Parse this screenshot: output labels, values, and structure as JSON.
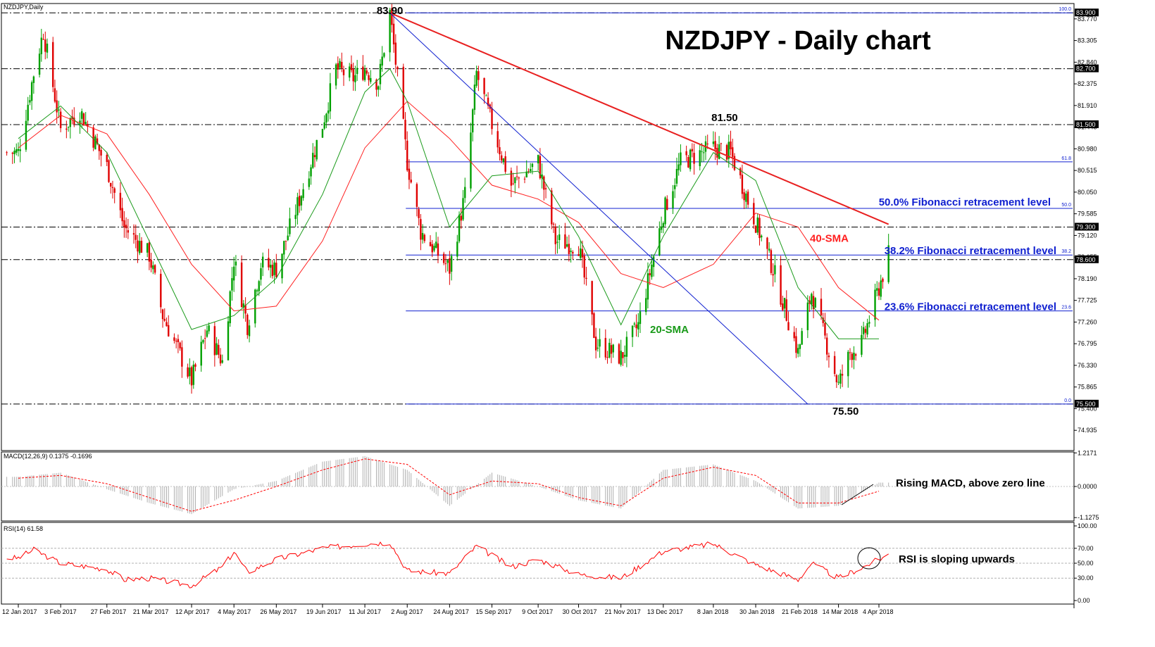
{
  "symbol_label": "NZDJPY,Daily",
  "title": "NZDJPY - Daily chart",
  "colors": {
    "bull_candle": "#00a000",
    "bear_candle": "#e00000",
    "sma20": "#1a9a1a",
    "sma40": "#ff2020",
    "fib": "#1020d0",
    "trendline": "#e82020",
    "level": "#000000",
    "macd_signal": "#ff0000",
    "macd_hist": "#b0b0b0",
    "rsi": "#ff0000"
  },
  "chart_data": [
    {
      "type": "candlestick",
      "title": "NZDJPY - Daily chart",
      "price_range": [
        74.5,
        84.1
      ],
      "price_ticks": [
        "83.770",
        "83.305",
        "82.840",
        "82.375",
        "81.910",
        "81.445",
        "80.980",
        "80.515",
        "80.050",
        "79.585",
        "79.120",
        "78.655",
        "78.190",
        "77.725",
        "77.260",
        "76.795",
        "76.330",
        "75.865",
        "75.400",
        "74.935"
      ],
      "date_ticks": [
        "12 Jan 2017",
        "3 Feb 2017",
        "27 Feb 2017",
        "21 Mar 2017",
        "12 Apr 2017",
        "4 May 2017",
        "26 May 2017",
        "19 Jun 2017",
        "11 Jul 2017",
        "2 Aug 2017",
        "24 Aug 2017",
        "15 Sep 2017",
        "9 Oct 2017",
        "30 Oct 2017",
        "21 Nov 2017",
        "13 Dec 2017",
        "8 Jan 2018",
        "30 Jan 2018",
        "21 Feb 2018",
        "14 Mar 2018",
        "4 Apr 2018"
      ],
      "close_path": [
        [
          "12 Jan 2017",
          80.9
        ],
        [
          "20 Jan 2017",
          82.6
        ],
        [
          "25 Jan 2017",
          83.5
        ],
        [
          "3 Feb 2017",
          81.4
        ],
        [
          "13 Feb 2017",
          81.8
        ],
        [
          "27 Feb 2017",
          80.6
        ],
        [
          "8 Mar 2017",
          79.3
        ],
        [
          "21 Mar 2017",
          78.7
        ],
        [
          "28 Mar 2017",
          77.4
        ],
        [
          "12 Apr 2017",
          76.0
        ],
        [
          "20 Apr 2017",
          77.1
        ],
        [
          "28 Apr 2017",
          76.4
        ],
        [
          "4 May 2017",
          78.6
        ],
        [
          "11 May 2017",
          77.2
        ],
        [
          "18 May 2017",
          78.5
        ],
        [
          "26 May 2017",
          78.4
        ],
        [
          "7 Jun 2017",
          79.9
        ],
        [
          "19 Jun 2017",
          81.5
        ],
        [
          "26 Jun 2017",
          82.7
        ],
        [
          "5 Jul 2017",
          82.5
        ],
        [
          "11 Jul 2017",
          82.7
        ],
        [
          "18 Jul 2017",
          82.4
        ],
        [
          "24 Jul 2017",
          83.9
        ],
        [
          "2 Aug 2017",
          80.7
        ],
        [
          "9 Aug 2017",
          79.2
        ],
        [
          "24 Aug 2017",
          78.4
        ],
        [
          "1 Sep 2017",
          80.0
        ],
        [
          "7 Sep 2017",
          82.6
        ],
        [
          "15 Sep 2017",
          81.5
        ],
        [
          "25 Sep 2017",
          80.2
        ],
        [
          "9 Oct 2017",
          80.7
        ],
        [
          "18 Oct 2017",
          79.0
        ],
        [
          "30 Oct 2017",
          78.9
        ],
        [
          "8 Nov 2017",
          76.8
        ],
        [
          "21 Nov 2017",
          76.5
        ],
        [
          "30 Nov 2017",
          77.2
        ],
        [
          "13 Dec 2017",
          79.6
        ],
        [
          "22 Dec 2017",
          80.7
        ],
        [
          "8 Jan 2018",
          81.0
        ],
        [
          "17 Jan 2018",
          80.9
        ],
        [
          "30 Jan 2018",
          79.4
        ],
        [
          "8 Feb 2018",
          78.4
        ],
        [
          "21 Feb 2018",
          76.6
        ],
        [
          "28 Feb 2018",
          77.9
        ],
        [
          "7 Mar 2018",
          76.9
        ],
        [
          "14 Mar 2018",
          75.9
        ],
        [
          "20 Mar 2018",
          76.6
        ],
        [
          "26 Mar 2018",
          76.8
        ],
        [
          "4 Apr 2018",
          78.0
        ],
        [
          "9 Apr 2018",
          78.7
        ]
      ],
      "sma20_path": [
        [
          "12 Jan 2017",
          81.2
        ],
        [
          "3 Feb 2017",
          81.9
        ],
        [
          "27 Feb 2017",
          80.9
        ],
        [
          "21 Mar 2017",
          79.0
        ],
        [
          "12 Apr 2017",
          77.1
        ],
        [
          "4 May 2017",
          77.4
        ],
        [
          "26 May 2017",
          78.2
        ],
        [
          "19 Jun 2017",
          80.0
        ],
        [
          "11 Jul 2017",
          82.2
        ],
        [
          "24 Jul 2017",
          82.7
        ],
        [
          "2 Aug 2017",
          82.0
        ],
        [
          "24 Aug 2017",
          79.3
        ],
        [
          "15 Sep 2017",
          80.4
        ],
        [
          "9 Oct 2017",
          80.5
        ],
        [
          "30 Oct 2017",
          79.1
        ],
        [
          "21 Nov 2017",
          77.2
        ],
        [
          "13 Dec 2017",
          79.1
        ],
        [
          "8 Jan 2018",
          80.9
        ],
        [
          "30 Jan 2018",
          80.3
        ],
        [
          "21 Feb 2018",
          78.0
        ],
        [
          "14 Mar 2018",
          76.9
        ],
        [
          "4 Apr 2018",
          76.9
        ]
      ],
      "sma40_path": [
        [
          "12 Jan 2017",
          81.0
        ],
        [
          "3 Feb 2017",
          81.7
        ],
        [
          "27 Feb 2017",
          81.3
        ],
        [
          "21 Mar 2017",
          80.0
        ],
        [
          "12 Apr 2017",
          78.5
        ],
        [
          "4 May 2017",
          77.5
        ],
        [
          "26 May 2017",
          77.6
        ],
        [
          "19 Jun 2017",
          79.0
        ],
        [
          "11 Jul 2017",
          81.0
        ],
        [
          "2 Aug 2017",
          82.0
        ],
        [
          "24 Aug 2017",
          81.2
        ],
        [
          "15 Sep 2017",
          80.2
        ],
        [
          "9 Oct 2017",
          79.9
        ],
        [
          "30 Oct 2017",
          79.4
        ],
        [
          "21 Nov 2017",
          78.3
        ],
        [
          "13 Dec 2017",
          78.0
        ],
        [
          "8 Jan 2018",
          78.5
        ],
        [
          "30 Jan 2018",
          79.6
        ],
        [
          "21 Feb 2018",
          79.3
        ],
        [
          "14 Mar 2018",
          78.0
        ],
        [
          "4 Apr 2018",
          77.3
        ]
      ],
      "horizontal_levels": [
        {
          "price": 83.9,
          "label": "83.900",
          "style": "dash-dot"
        },
        {
          "price": 82.7,
          "label": "82.700",
          "style": "dash-dot"
        },
        {
          "price": 81.5,
          "label": "81.500",
          "style": "dash-dot"
        },
        {
          "price": 79.3,
          "label": "79.300",
          "style": "dash-dot"
        },
        {
          "price": 78.6,
          "label": "78.600",
          "style": "dash-dot"
        },
        {
          "price": 75.5,
          "label": "75.500",
          "style": "dash-dot"
        }
      ],
      "fibonacci": {
        "from_date": "2 Aug 2017",
        "levels": [
          {
            "ratio": "100.0",
            "price": 83.9
          },
          {
            "ratio": "61.8",
            "price": 80.7
          },
          {
            "ratio": "50.0",
            "price": 79.7
          },
          {
            "ratio": "38.2",
            "price": 78.7
          },
          {
            "ratio": "23.6",
            "price": 77.5
          },
          {
            "ratio": "0.0",
            "price": 75.5
          }
        ]
      },
      "trendlines": [
        {
          "name": "red",
          "from": [
            "24 Jul 2017",
            83.9
          ],
          "to": [
            "9 Apr 2018",
            79.36
          ]
        },
        {
          "name": "blue",
          "from": [
            "24 Jul 2017",
            83.9
          ],
          "to": [
            "26 Feb 2018",
            75.5
          ]
        }
      ],
      "annotations": [
        {
          "text": "83.90",
          "date": "24 Jul 2017",
          "price": 83.9
        },
        {
          "text": "81.50",
          "date": "8 Jan 2018",
          "price": 81.5
        },
        {
          "text": "75.50",
          "date": "14 Mar 2018",
          "price": 75.5
        },
        {
          "text": "50.0% Fibonacci retracement level",
          "price": 79.7
        },
        {
          "text": "40-SMA",
          "price": 79.1
        },
        {
          "text": "38.2% Fibonacci retracement level",
          "price": 78.7
        },
        {
          "text": "23.6% Fibonacci retracement level",
          "price": 77.5
        },
        {
          "text": "20-SMA",
          "price": 77.1
        }
      ]
    },
    {
      "type": "bar",
      "name": "MACD",
      "header": "MACD(12,26,9) 0.1375 -0.1696",
      "ticks": [
        "1.2171",
        "0.0000",
        "-1.1275"
      ],
      "range": [
        -1.25,
        1.25
      ],
      "hist_path": [
        [
          "12 Jan 2017",
          0.35
        ],
        [
          "3 Feb 2017",
          0.5
        ],
        [
          "27 Feb 2017",
          -0.1
        ],
        [
          "21 Mar 2017",
          -0.6
        ],
        [
          "12 Apr 2017",
          -1.0
        ],
        [
          "4 May 2017",
          -0.1
        ],
        [
          "26 May 2017",
          0.2
        ],
        [
          "19 Jun 2017",
          0.9
        ],
        [
          "11 Jul 2017",
          1.1
        ],
        [
          "2 Aug 2017",
          0.6
        ],
        [
          "24 Aug 2017",
          -0.7
        ],
        [
          "15 Sep 2017",
          0.5
        ],
        [
          "9 Oct 2017",
          0.0
        ],
        [
          "30 Oct 2017",
          -0.5
        ],
        [
          "21 Nov 2017",
          -0.8
        ],
        [
          "13 Dec 2017",
          0.6
        ],
        [
          "8 Jan 2018",
          0.8
        ],
        [
          "30 Jan 2018",
          0.2
        ],
        [
          "21 Feb 2018",
          -0.8
        ],
        [
          "14 Mar 2018",
          -0.7
        ],
        [
          "4 Apr 2018",
          0.14
        ]
      ],
      "signal_path": [
        [
          "12 Jan 2017",
          0.3
        ],
        [
          "3 Feb 2017",
          0.4
        ],
        [
          "27 Feb 2017",
          0.1
        ],
        [
          "21 Mar 2017",
          -0.4
        ],
        [
          "12 Apr 2017",
          -0.9
        ],
        [
          "4 May 2017",
          -0.5
        ],
        [
          "26 May 2017",
          0.0
        ],
        [
          "19 Jun 2017",
          0.6
        ],
        [
          "11 Jul 2017",
          1.0
        ],
        [
          "2 Aug 2017",
          0.8
        ],
        [
          "24 Aug 2017",
          -0.3
        ],
        [
          "15 Sep 2017",
          0.2
        ],
        [
          "9 Oct 2017",
          0.1
        ],
        [
          "30 Oct 2017",
          -0.4
        ],
        [
          "21 Nov 2017",
          -0.7
        ],
        [
          "13 Dec 2017",
          0.3
        ],
        [
          "8 Jan 2018",
          0.7
        ],
        [
          "30 Jan 2018",
          0.4
        ],
        [
          "21 Feb 2018",
          -0.6
        ],
        [
          "14 Mar 2018",
          -0.6
        ],
        [
          "4 Apr 2018",
          -0.17
        ]
      ],
      "annotation": "Rising MACD, above zero line"
    },
    {
      "type": "line",
      "name": "RSI",
      "header": "RSI(14) 61.58",
      "ticks": [
        "100.00",
        "70.00",
        "50.00",
        "30.00",
        "0.00"
      ],
      "range": [
        0,
        100
      ],
      "levels": [
        70,
        50,
        30
      ],
      "values_path": [
        [
          "12 Jan 2017",
          57
        ],
        [
          "20 Jan 2017",
          68
        ],
        [
          "3 Feb 2017",
          50
        ],
        [
          "27 Feb 2017",
          42
        ],
        [
          "8 Mar 2017",
          28
        ],
        [
          "21 Mar 2017",
          30
        ],
        [
          "12 Apr 2017",
          20
        ],
        [
          "28 Apr 2017",
          45
        ],
        [
          "4 May 2017",
          65
        ],
        [
          "11 May 2017",
          38
        ],
        [
          "26 May 2017",
          55
        ],
        [
          "19 Jun 2017",
          70
        ],
        [
          "11 Jul 2017",
          76
        ],
        [
          "24 Jul 2017",
          78
        ],
        [
          "2 Aug 2017",
          40
        ],
        [
          "24 Aug 2017",
          36
        ],
        [
          "7 Sep 2017",
          73
        ],
        [
          "25 Sep 2017",
          45
        ],
        [
          "9 Oct 2017",
          55
        ],
        [
          "30 Oct 2017",
          35
        ],
        [
          "21 Nov 2017",
          30
        ],
        [
          "13 Dec 2017",
          66
        ],
        [
          "8 Jan 2018",
          76
        ],
        [
          "30 Jan 2018",
          48
        ],
        [
          "21 Feb 2018",
          28
        ],
        [
          "28 Feb 2018",
          50
        ],
        [
          "14 Mar 2018",
          30
        ],
        [
          "26 Mar 2018",
          44
        ],
        [
          "9 Apr 2018",
          61.58
        ]
      ],
      "annotation": "RSI is sloping upwards"
    }
  ]
}
